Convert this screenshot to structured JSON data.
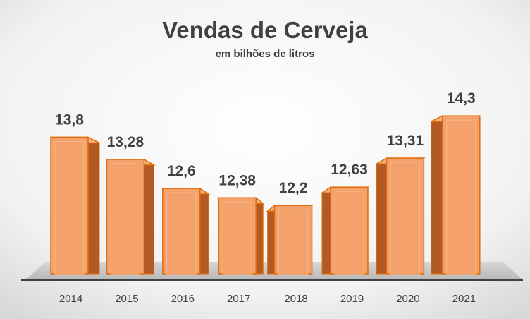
{
  "chart_data": {
    "type": "bar",
    "title": "Vendas de Cerveja",
    "subtitle": "em bilhões de litros",
    "categories": [
      "2014",
      "2015",
      "2016",
      "2017",
      "2018",
      "2019",
      "2020",
      "2021"
    ],
    "values": [
      13.8,
      13.28,
      12.6,
      12.38,
      12.2,
      12.63,
      13.31,
      14.3
    ],
    "value_labels": [
      "13,8",
      "13,28",
      "12,6",
      "12,38",
      "12,2",
      "12,63",
      "13,31",
      "14,3"
    ],
    "xlabel": "",
    "ylabel": "",
    "ylim": [
      10.6,
      14.7
    ],
    "grid": false,
    "legend": "none"
  },
  "colors": {
    "bar_front": "#F4A16B",
    "bar_side": "#B25A24",
    "bar_top": "#F6B27E",
    "bar_edge": "#E26B0A",
    "floor": "#C8C8C8",
    "title": "#404040",
    "label": "#404040"
  }
}
